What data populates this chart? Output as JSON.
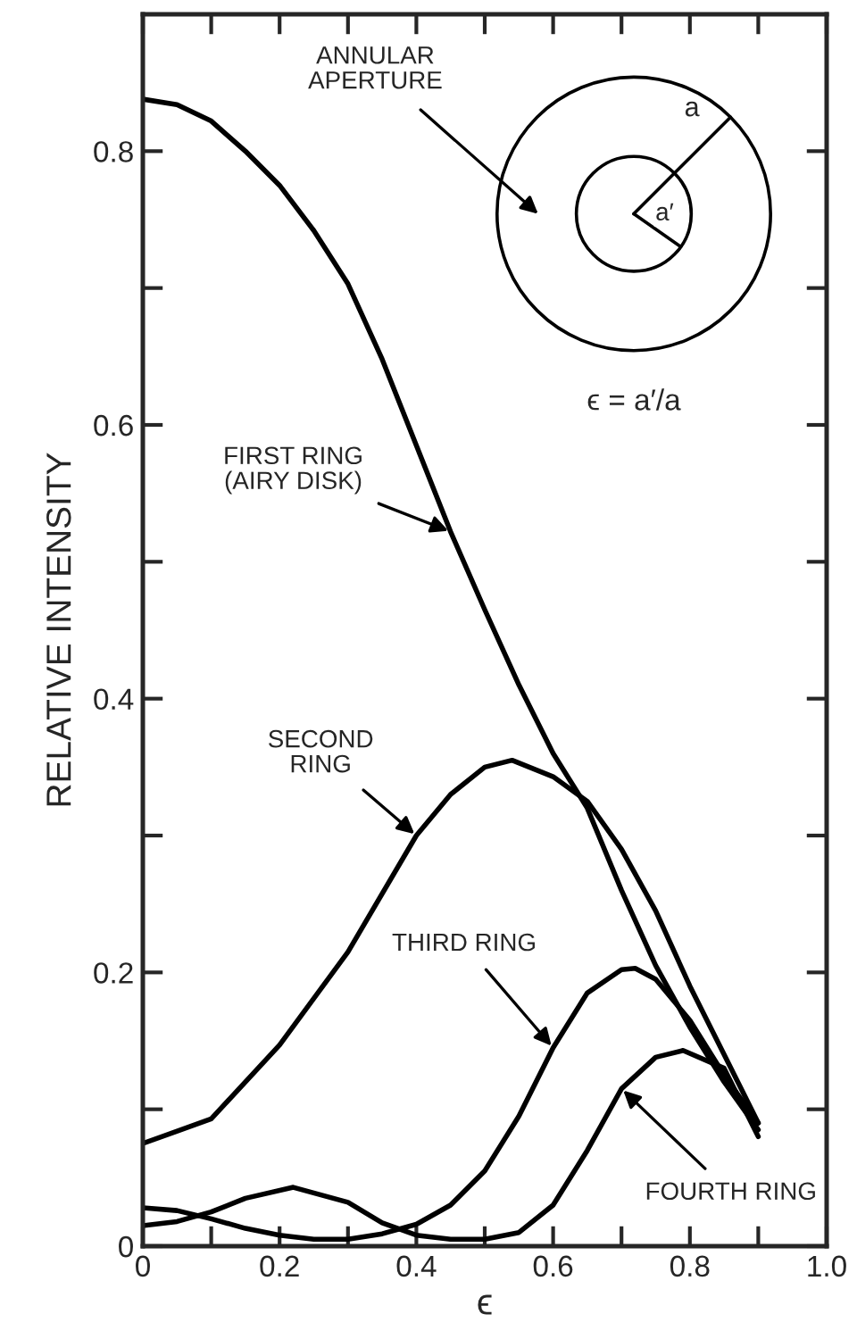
{
  "chart_data": {
    "type": "line",
    "xlabel": "ϵ",
    "ylabel": "RELATIVE INTENSITY",
    "xlim": [
      0,
      1
    ],
    "ylim": [
      0,
      0.9
    ],
    "xticks": [
      0,
      {
        "value": 0.1,
        "label": null
      },
      0.2,
      {
        "value": 0.3,
        "label": null
      },
      0.4,
      {
        "value": 0.5,
        "label": null
      },
      0.6,
      {
        "value": 0.7,
        "label": null
      },
      0.8,
      {
        "value": 0.9,
        "label": null
      },
      {
        "value": 1,
        "label": "1.0"
      }
    ],
    "yticks": [
      0,
      {
        "value": 0.1,
        "label": null
      },
      0.2,
      {
        "value": 0.3,
        "label": null
      },
      0.4,
      {
        "value": 0.5,
        "label": null
      },
      0.6,
      {
        "value": 0.7,
        "label": null
      },
      0.8
    ],
    "grid": false,
    "legend": false,
    "marker": "none",
    "line_style": "solid",
    "series": [
      {
        "color": "#000000",
        "x": [
          0,
          0.05,
          0.1,
          0.15,
          0.2,
          0.25,
          0.3,
          0.35,
          0.4,
          0.45,
          0.5,
          0.55,
          0.6,
          0.65,
          0.7,
          0.75,
          0.8,
          0.85,
          0.9
        ],
        "values": [
          0.838,
          0.834,
          0.822,
          0.8,
          0.775,
          0.742,
          0.703,
          0.648,
          0.585,
          0.522,
          0.465,
          0.41,
          0.36,
          0.32,
          0.26,
          0.205,
          0.16,
          0.12,
          0.085
        ]
      },
      {
        "color": "#000000",
        "x": [
          0,
          0.1,
          0.2,
          0.3,
          0.4,
          0.45,
          0.5,
          0.54,
          0.6,
          0.65,
          0.7,
          0.75,
          0.8,
          0.85,
          0.9
        ],
        "values": [
          0.075,
          0.093,
          0.147,
          0.215,
          0.3,
          0.33,
          0.35,
          0.355,
          0.343,
          0.325,
          0.29,
          0.245,
          0.19,
          0.14,
          0.09
        ]
      },
      {
        "color": "#000000",
        "x": [
          0,
          0.05,
          0.1,
          0.15,
          0.2,
          0.25,
          0.3,
          0.35,
          0.4,
          0.45,
          0.5,
          0.55,
          0.6,
          0.65,
          0.7,
          0.72,
          0.75,
          0.8,
          0.85,
          0.9
        ],
        "values": [
          0.028,
          0.026,
          0.02,
          0.013,
          0.008,
          0.005,
          0.005,
          0.009,
          0.016,
          0.03,
          0.055,
          0.095,
          0.145,
          0.185,
          0.202,
          0.203,
          0.195,
          0.165,
          0.125,
          0.09
        ]
      },
      {
        "color": "#000000",
        "x": [
          0,
          0.05,
          0.1,
          0.15,
          0.22,
          0.3,
          0.35,
          0.4,
          0.45,
          0.5,
          0.55,
          0.6,
          0.65,
          0.7,
          0.75,
          0.79,
          0.85,
          0.9
        ],
        "values": [
          0.015,
          0.018,
          0.025,
          0.035,
          0.043,
          0.032,
          0.017,
          0.008,
          0.005,
          0.005,
          0.01,
          0.03,
          0.07,
          0.115,
          0.138,
          0.143,
          0.13,
          0.08
        ]
      }
    ],
    "annotations": [
      {
        "text": "FIRST RING\n(AIRY DISK)",
        "x": 0.45,
        "y": 0.522
      },
      {
        "text": "SECOND\nRING",
        "x": 0.4,
        "y": 0.3
      },
      {
        "text": "THIRD RING",
        "x": 0.6,
        "y": 0.145
      },
      {
        "text": "FOURTH RING",
        "x": 0.7,
        "y": 0.115
      },
      "ANNULAR\nAPERTURE",
      "a",
      "a′",
      "ϵ = a′/a"
    ]
  }
}
